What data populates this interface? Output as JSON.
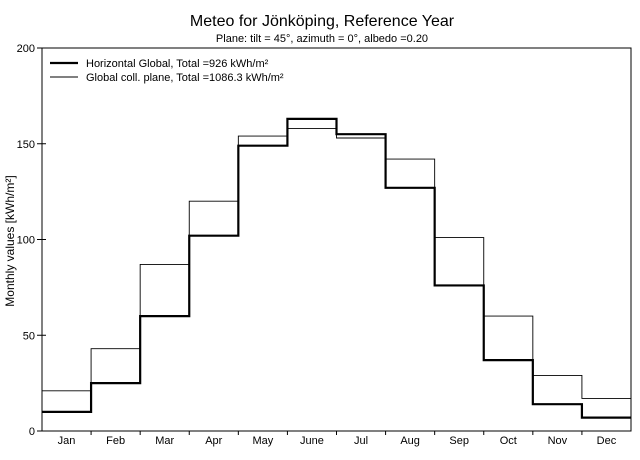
{
  "chart_data": {
    "type": "line",
    "title": "Meteo for  Jönköping,   Reference Year",
    "subtitle": "Plane: tilt =  45°, azimuth =    0°, albedo =0.20",
    "xlabel": "",
    "ylabel": "Monthly values  [kWh/m²]",
    "categories": [
      "Jan",
      "Feb",
      "Mar",
      "Apr",
      "May",
      "June",
      "Jul",
      "Aug",
      "Sep",
      "Oct",
      "Nov",
      "Dec"
    ],
    "ylim": [
      0,
      200
    ],
    "yticks": [
      0,
      50,
      100,
      150,
      200
    ],
    "grid": false,
    "legend_position": "top-left",
    "series": [
      {
        "name": "Horizontal Global,  Total =926 kWh/m²",
        "values": [
          10,
          25,
          60,
          102,
          149,
          163,
          155,
          127,
          76,
          37,
          14,
          7
        ],
        "style": "thick"
      },
      {
        "name": "Global coll. plane,  Total =1086.3 kWh/m²",
        "values": [
          21,
          43,
          87,
          120,
          154,
          158,
          153,
          142,
          101,
          60,
          29,
          17
        ],
        "style": "thin"
      }
    ]
  }
}
